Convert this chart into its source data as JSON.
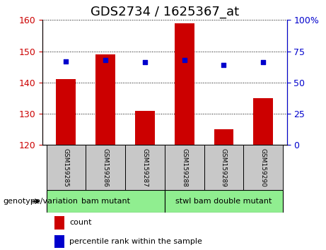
{
  "title": "GDS2734 / 1625367_at",
  "samples": [
    "GSM159285",
    "GSM159286",
    "GSM159287",
    "GSM159288",
    "GSM159289",
    "GSM159290"
  ],
  "counts": [
    141,
    149,
    131,
    159,
    125,
    135
  ],
  "percentiles": [
    67,
    68,
    66,
    68,
    64,
    66
  ],
  "ylim_left": [
    120,
    160
  ],
  "ylim_right": [
    0,
    100
  ],
  "yticks_left": [
    120,
    130,
    140,
    150,
    160
  ],
  "yticks_right": [
    0,
    25,
    50,
    75,
    100
  ],
  "groups": [
    {
      "label": "bam mutant",
      "indices": [
        0,
        1,
        2
      ],
      "color": "#90EE90"
    },
    {
      "label": "stwl bam double mutant",
      "indices": [
        3,
        4,
        5
      ],
      "color": "#90EE90"
    }
  ],
  "bar_color": "#CC0000",
  "dot_color": "#0000CC",
  "bar_width": 0.4,
  "grid_color": "#000000",
  "bg_plot": "#FFFFFF",
  "bg_ticklabel": "#C8C8C8",
  "left_tick_color": "#CC0000",
  "right_tick_color": "#0000CC",
  "legend_count_label": "count",
  "legend_pct_label": "percentile rank within the sample",
  "genotype_label": "genotype/variation",
  "title_fontsize": 13,
  "axis_fontsize": 10,
  "tick_fontsize": 9
}
